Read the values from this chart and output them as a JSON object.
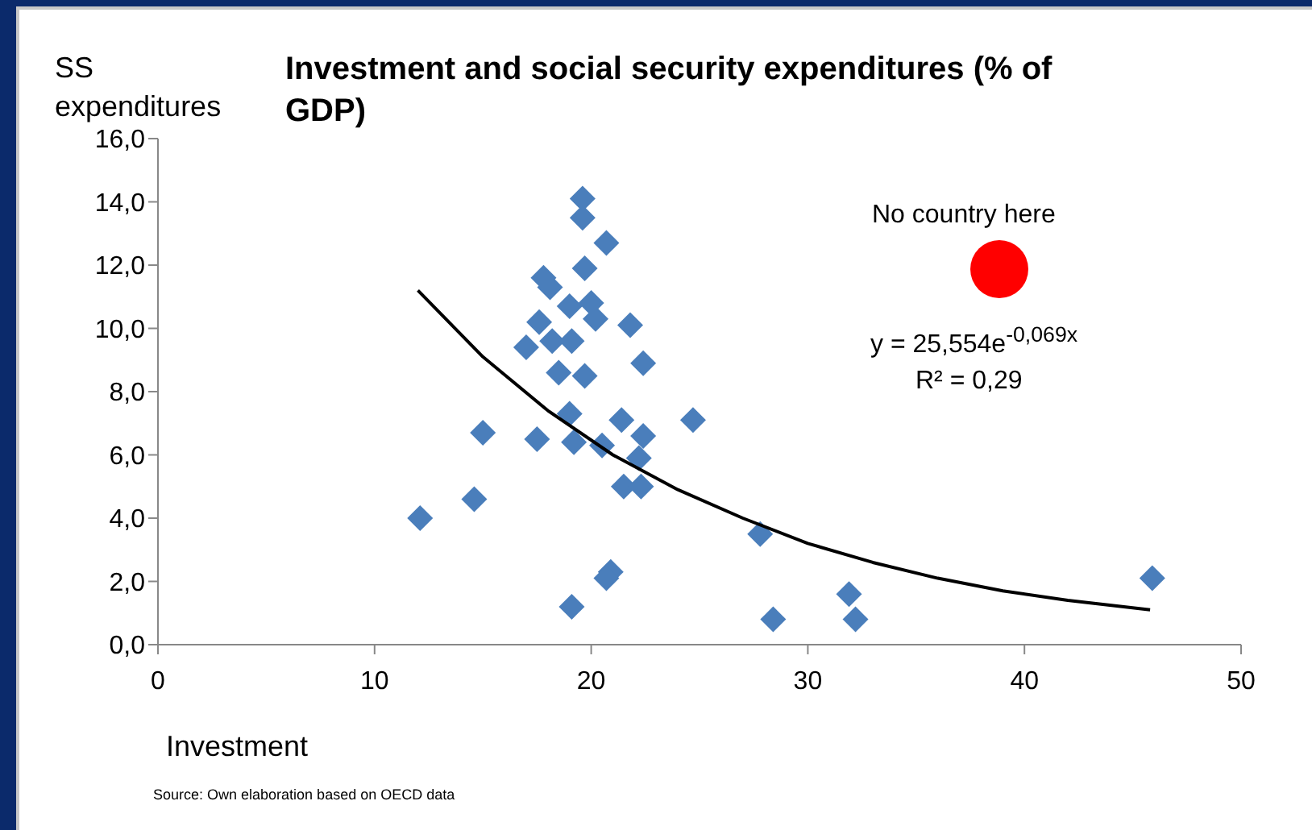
{
  "chart_data": {
    "type": "scatter",
    "title": "Investment and social security expenditures (% of GDP)",
    "xlabel": "Investment",
    "ylabel": "SS expenditures",
    "xlim": [
      0,
      50
    ],
    "xticks": [
      0,
      10,
      20,
      30,
      40,
      50
    ],
    "ylim": [
      0,
      16
    ],
    "yticks": [
      {
        "value": 0,
        "label": "0,0"
      },
      {
        "value": 2,
        "label": "2,0"
      },
      {
        "value": 4,
        "label": "4,0"
      },
      {
        "value": 6,
        "label": "6,0"
      },
      {
        "value": 8,
        "label": "8,0"
      },
      {
        "value": 10,
        "label": "10,0"
      },
      {
        "value": 12,
        "label": "12,0"
      },
      {
        "value": 14,
        "label": "14,0"
      },
      {
        "value": 16,
        "label": "16,0"
      }
    ],
    "grid": false,
    "marker": "diamond",
    "series": [
      {
        "color": "#4a7ebb",
        "x": [
          19.6,
          19.6,
          20.7,
          19.7,
          17.8,
          18.1,
          19.0,
          20.0,
          20.2,
          21.8,
          17.6,
          17.0,
          18.2,
          19.1,
          22.4,
          18.5,
          19.7,
          19.0,
          21.4,
          24.7,
          15.0,
          17.5,
          19.2,
          20.5,
          22.4,
          22.2,
          21.5,
          22.3,
          14.6,
          12.1,
          20.9,
          20.7,
          19.1,
          27.8,
          28.4,
          31.9,
          32.2,
          45.9
        ],
        "values": [
          14.1,
          13.5,
          12.7,
          11.9,
          11.6,
          11.3,
          10.7,
          10.8,
          10.3,
          10.1,
          10.2,
          9.4,
          9.6,
          9.6,
          8.9,
          8.6,
          8.5,
          7.3,
          7.1,
          7.1,
          6.7,
          6.5,
          6.4,
          6.3,
          6.6,
          5.9,
          5.0,
          5.0,
          4.6,
          4.0,
          2.3,
          2.1,
          1.2,
          3.5,
          0.8,
          1.6,
          0.8,
          2.1
        ]
      },
      {
        "type": "line",
        "color": "#000000",
        "marker": "none",
        "x": [
          12,
          15,
          18,
          21,
          24,
          27,
          30,
          33,
          36,
          39,
          42,
          45.8
        ],
        "values": [
          11.2,
          9.1,
          7.4,
          6.0,
          4.9,
          4.0,
          3.2,
          2.6,
          2.1,
          1.7,
          1.4,
          1.1
        ]
      }
    ],
    "annotations": [
      "No country here",
      "y = 25,554e$^{-0,069x}$",
      "R² = 0,29",
      "Source: Own elaboration based on OECD data"
    ]
  }
}
